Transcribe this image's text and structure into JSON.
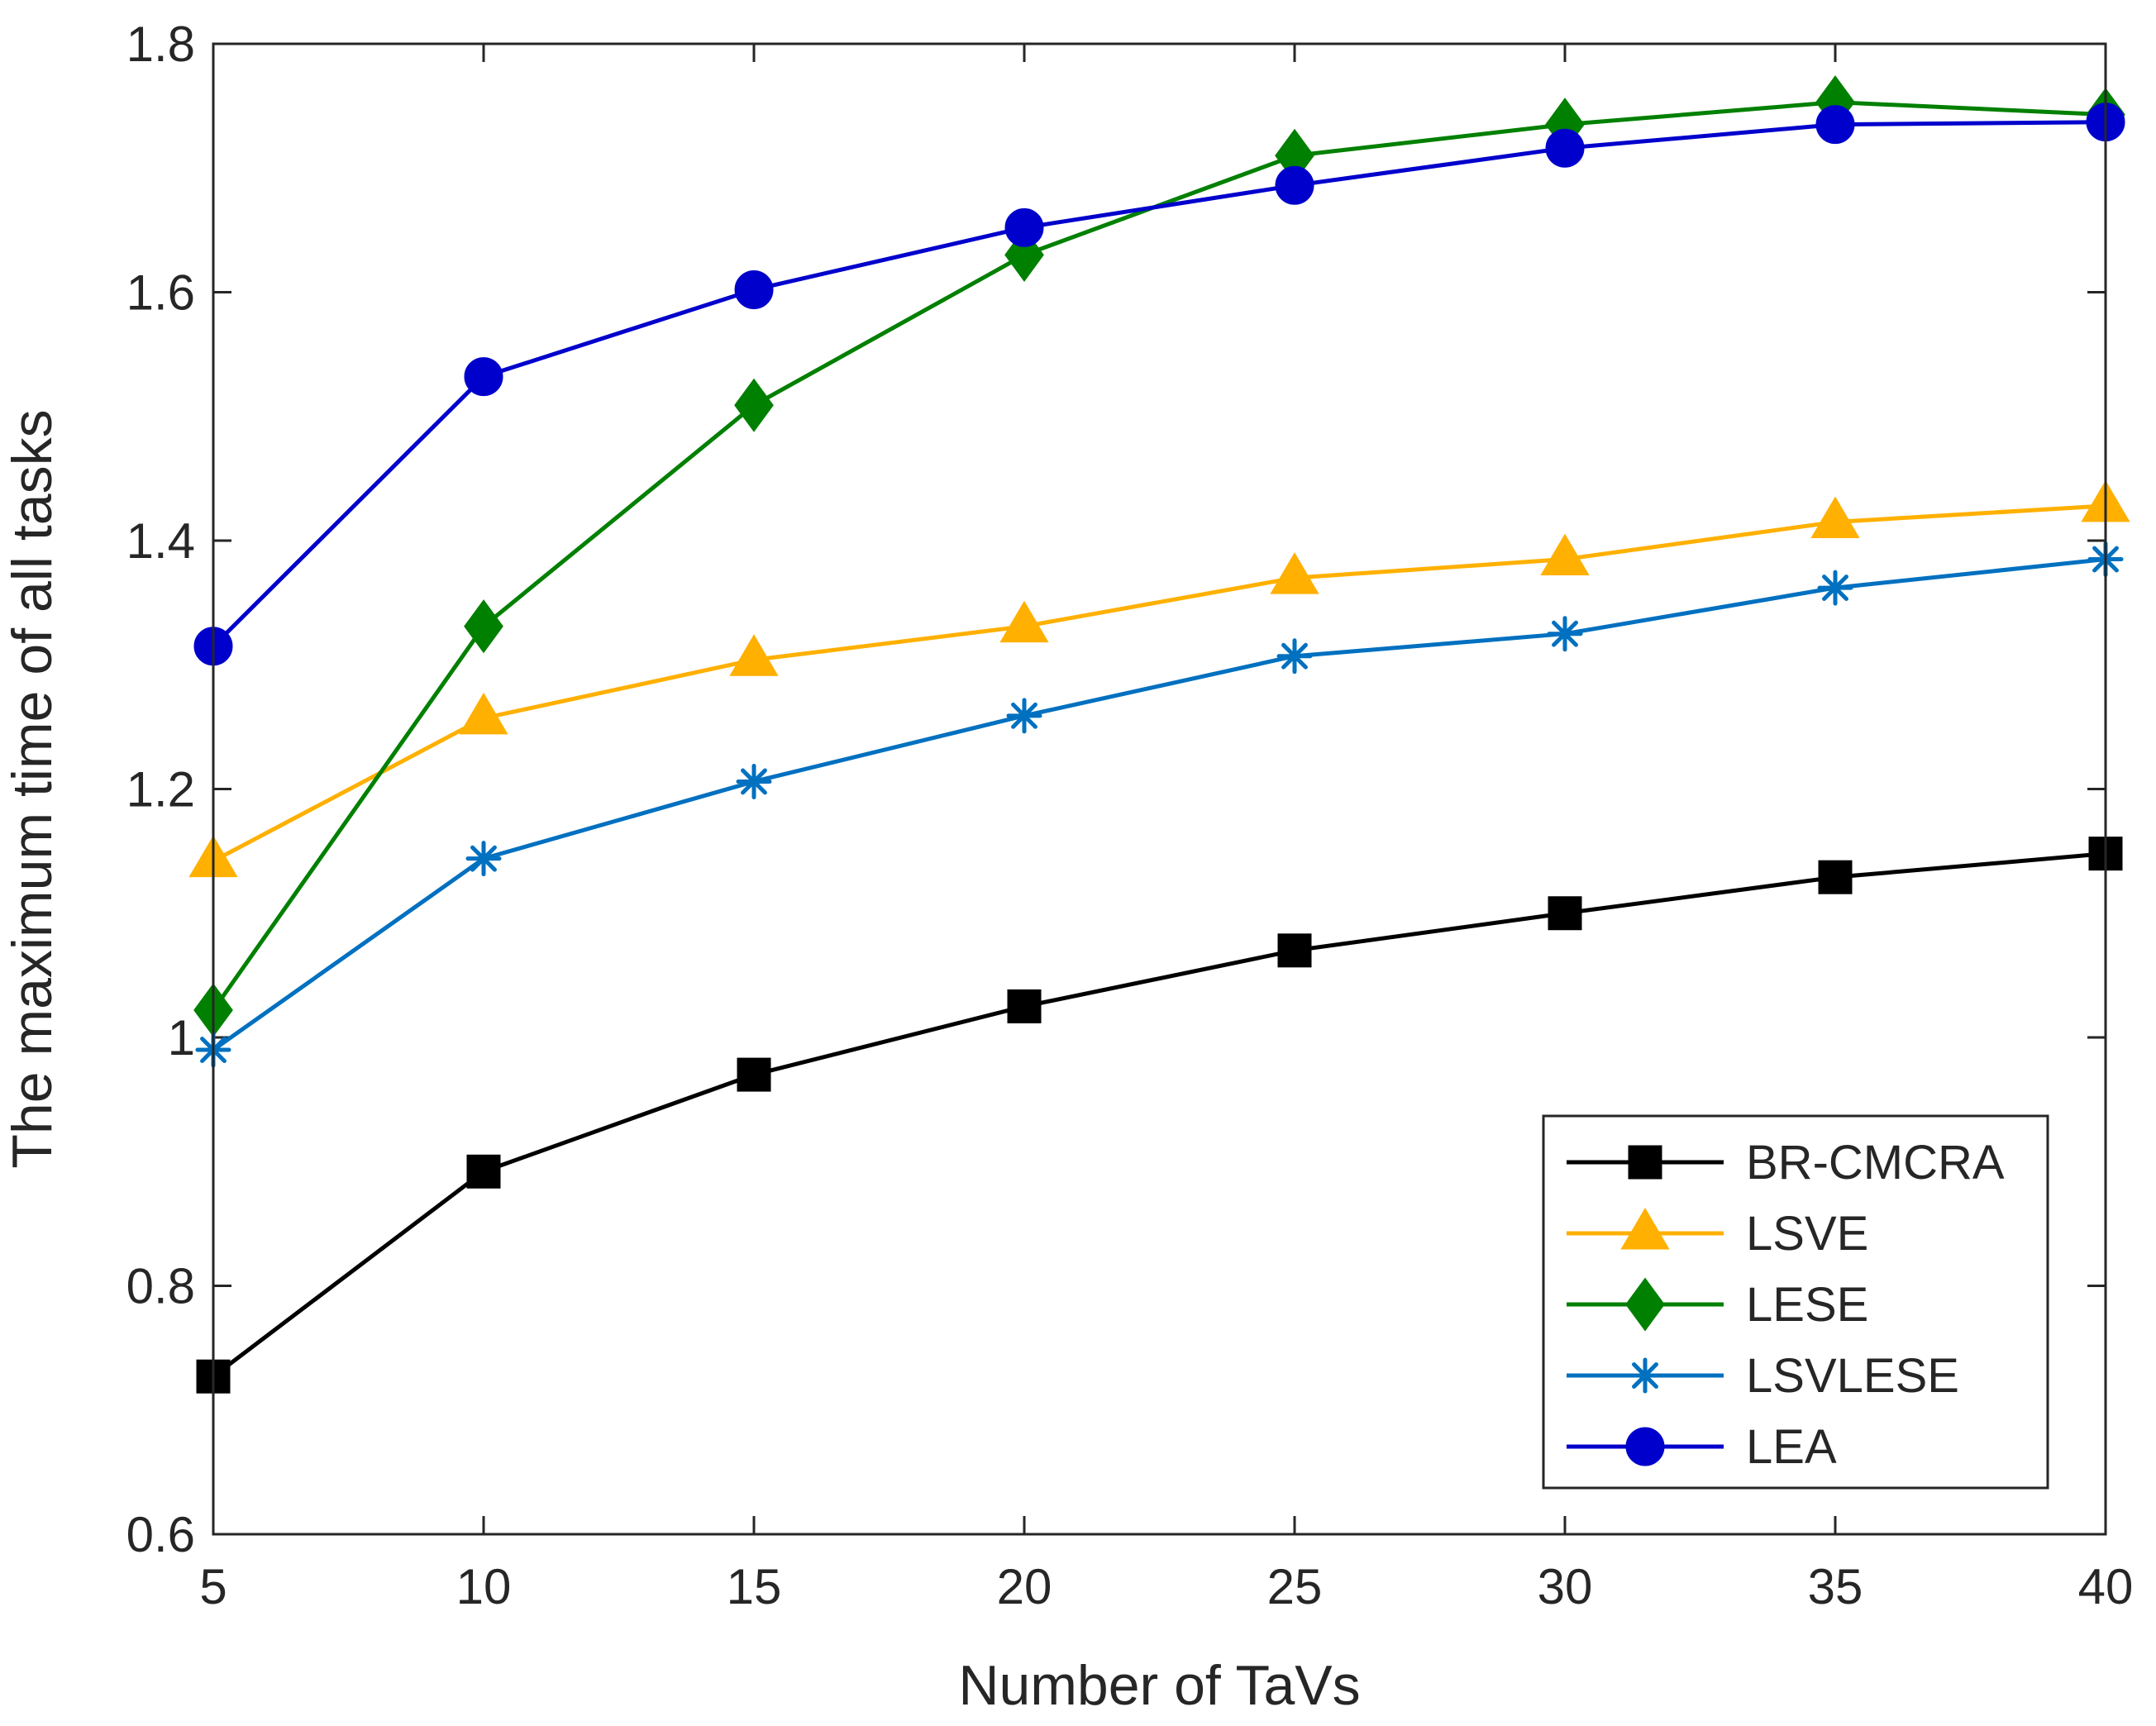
{
  "chart_data": {
    "type": "line",
    "title": "",
    "xlabel": "Number of TaVs",
    "ylabel": "The maximum time of all tasks",
    "x": [
      5,
      10,
      15,
      20,
      25,
      30,
      35,
      40
    ],
    "xlim": [
      5,
      40
    ],
    "ylim": [
      0.6,
      1.8
    ],
    "xticks": [
      5,
      10,
      15,
      20,
      25,
      30,
      35,
      40
    ],
    "xtick_labels": [
      "5",
      "10",
      "15",
      "20",
      "25",
      "30",
      "35",
      "40"
    ],
    "yticks": [
      0.6,
      0.8,
      1.0,
      1.2,
      1.4,
      1.6,
      1.8
    ],
    "ytick_labels": [
      "0.6",
      "0.8",
      "1",
      "1.2",
      "1.4",
      "1.6",
      "1.8"
    ],
    "grid": false,
    "legend_position": "bottom-right",
    "series": [
      {
        "name": "BR-CMCRA",
        "color": "#000000",
        "marker": "square",
        "values": [
          0.727,
          0.892,
          0.97,
          1.025,
          1.07,
          1.1,
          1.129,
          1.148
        ]
      },
      {
        "name": "LSVE",
        "color": "#FFB000",
        "marker": "triangle",
        "values": [
          1.142,
          1.257,
          1.304,
          1.331,
          1.37,
          1.385,
          1.415,
          1.428
        ]
      },
      {
        "name": "LESE",
        "color": "#008000",
        "marker": "diamond",
        "values": [
          1.022,
          1.331,
          1.509,
          1.63,
          1.71,
          1.735,
          1.753,
          1.743
        ]
      },
      {
        "name": "LSVLESE",
        "color": "#0070C0",
        "marker": "asterisk",
        "values": [
          0.99,
          1.144,
          1.206,
          1.259,
          1.307,
          1.325,
          1.362,
          1.385
        ]
      },
      {
        "name": "LEA",
        "color": "#0000CC",
        "marker": "circle",
        "values": [
          1.315,
          1.532,
          1.602,
          1.652,
          1.686,
          1.716,
          1.735,
          1.737
        ]
      }
    ]
  }
}
